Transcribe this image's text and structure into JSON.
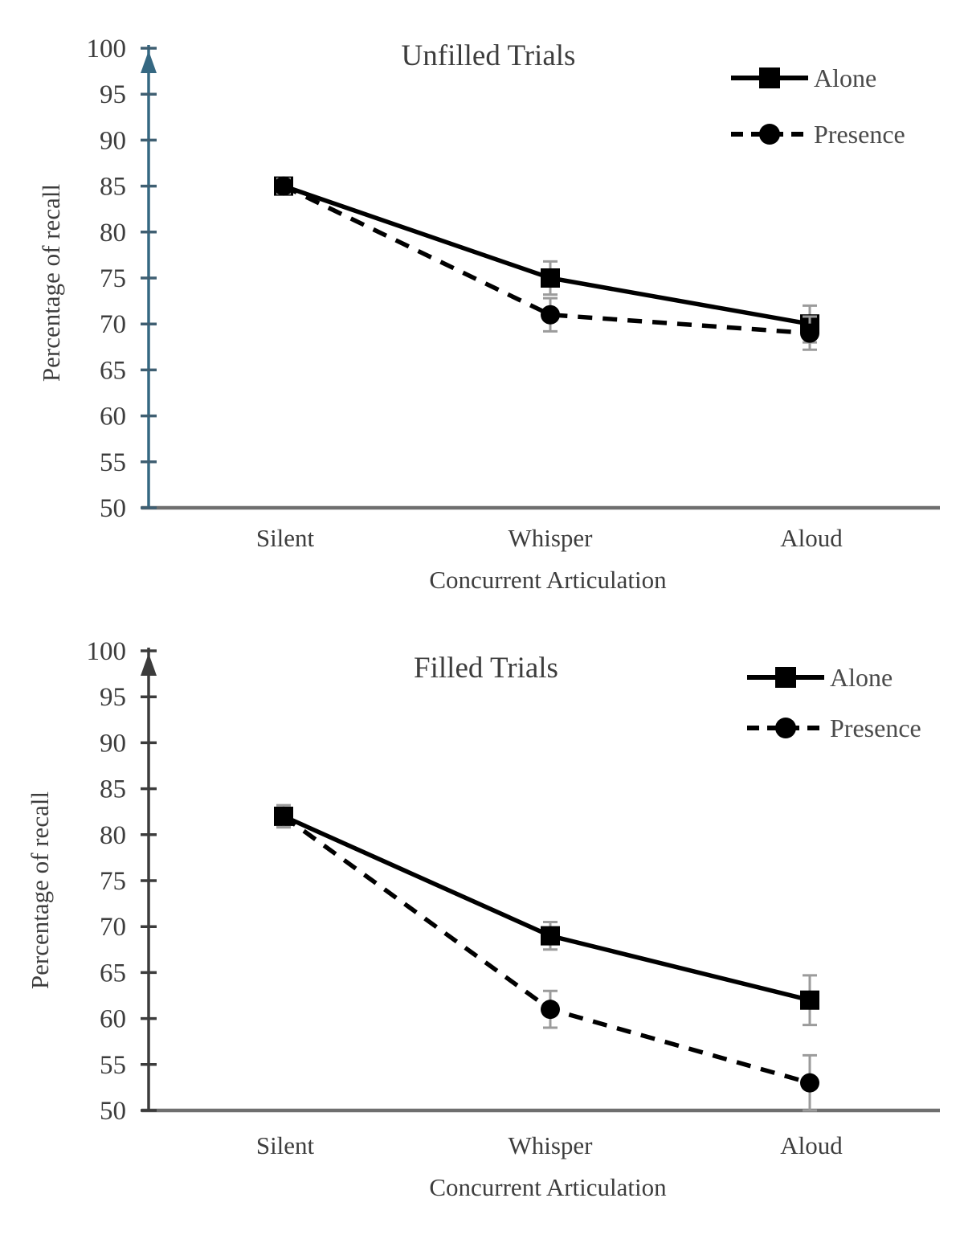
{
  "chart_data": [
    {
      "type": "line",
      "title": "Unfilled Trials",
      "xlabel": "Concurrent Articulation",
      "ylabel": "Percentage of recall",
      "categories": [
        "Silent",
        "Whisper",
        "Aloud"
      ],
      "ylim": [
        50,
        100
      ],
      "yticks": [
        50,
        55,
        60,
        65,
        70,
        75,
        80,
        85,
        90,
        95,
        100
      ],
      "grid": false,
      "legend_position": "top-right",
      "axis_color": "#356882",
      "tick_color": "#3f5f72",
      "x_axis_color": "#6f6f6f",
      "error_bar_color": "#9b9b9b",
      "text_color": "#3d3d3d",
      "series": [
        {
          "name": "Alone",
          "marker": "square",
          "line_style": "solid",
          "color": "#000000",
          "values": [
            85,
            75,
            70
          ],
          "error_bars": [
            0.8,
            1.8,
            2.0
          ]
        },
        {
          "name": "Presence",
          "marker": "circle",
          "line_style": "dashed",
          "color": "#000000",
          "values": [
            85,
            71,
            69
          ],
          "error_bars": [
            0.8,
            1.8,
            1.8
          ]
        }
      ]
    },
    {
      "type": "line",
      "title": "Filled Trials",
      "xlabel": "Concurrent Articulation",
      "ylabel": "Percentage of recall",
      "categories": [
        "Silent",
        "Whisper",
        "Aloud"
      ],
      "ylim": [
        50,
        100
      ],
      "yticks": [
        50,
        55,
        60,
        65,
        70,
        75,
        80,
        85,
        90,
        95,
        100
      ],
      "grid": false,
      "legend_position": "top-right",
      "axis_color": "#3c3c3c",
      "tick_color": "#3c3c3c",
      "x_axis_color": "#6f6f6f",
      "error_bar_color": "#9b9b9b",
      "text_color": "#3d3d3d",
      "series": [
        {
          "name": "Alone",
          "marker": "square",
          "line_style": "solid",
          "color": "#000000",
          "values": [
            82,
            69,
            62
          ],
          "error_bars": [
            1.2,
            1.5,
            2.7
          ]
        },
        {
          "name": "Presence",
          "marker": "circle",
          "line_style": "dashed",
          "color": "#000000",
          "values": [
            82,
            61,
            53
          ],
          "error_bars": [
            1.2,
            2.0,
            3.0
          ]
        }
      ]
    }
  ]
}
